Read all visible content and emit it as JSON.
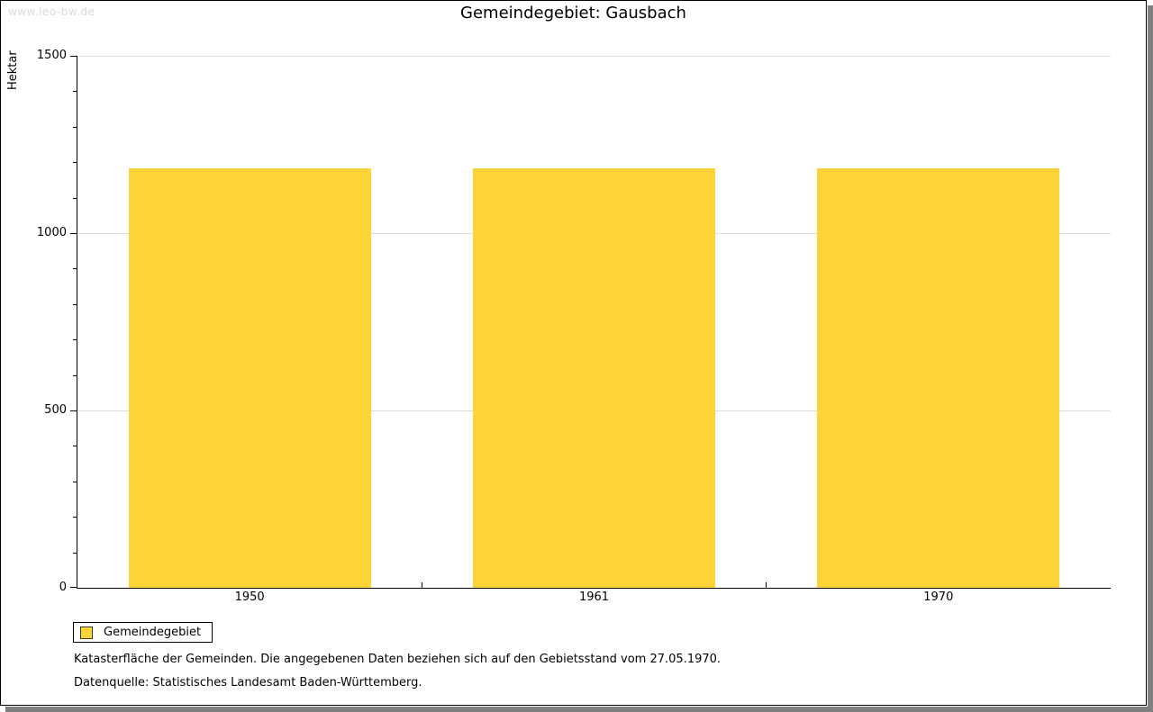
{
  "watermark": "www.leo-bw.de",
  "title": "Gemeindegebiet: Gausbach",
  "chart_data": {
    "type": "bar",
    "title": "Gemeindegebiet: Gausbach",
    "categories": [
      "1950",
      "1961",
      "1970"
    ],
    "series": [
      {
        "name": "Gemeindegebiet",
        "values": [
          1182,
          1182,
          1182
        ]
      }
    ],
    "xlabel": "",
    "ylabel": "Hektar",
    "ylim": [
      0,
      1500
    ],
    "y_major_ticks": [
      0,
      500,
      1000,
      1500
    ],
    "y_minor_step": 100,
    "grid": true,
    "legend_position": "bottom-left"
  },
  "legend": {
    "items": [
      {
        "label": "Gemeindegebiet",
        "color": "#FCD436"
      }
    ]
  },
  "footnotes": [
    "Katasterfläche der Gemeinden. Die angegebenen Daten beziehen sich auf den Gebietsstand vom 27.05.1970.",
    "Datenquelle: Statistisches Landesamt Baden-Württemberg."
  ],
  "colors": {
    "bar": "#FCD436",
    "grid": "#DCDCDC",
    "axis": "#000000",
    "watermark": "#D9D9D9",
    "frame_shadow": "#808080"
  }
}
